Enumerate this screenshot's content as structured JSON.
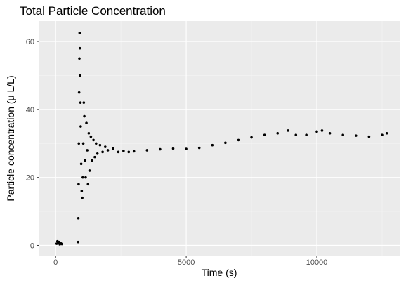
{
  "chart_data": {
    "type": "scatter",
    "title": "Total Particle Concentration",
    "xlabel": "Time (s)",
    "ylabel": "Particle concentration (μ L/L)",
    "xlim": [
      -650,
      13200
    ],
    "ylim": [
      -3,
      66
    ],
    "x_ticks": [
      0,
      5000,
      10000
    ],
    "x_tick_labels": [
      "0",
      "5000",
      "10000"
    ],
    "y_ticks": [
      0,
      20,
      40,
      60
    ],
    "y_tick_labels": [
      "0",
      "20",
      "40",
      "60"
    ],
    "grid": true,
    "legend": "none",
    "series": [
      {
        "color": "#000000",
        "x": [
          40,
          70,
          100,
          130,
          160,
          200,
          240,
          860,
          870,
          880,
          890,
          900,
          910,
          920,
          930,
          940,
          950,
          960,
          980,
          1000,
          1020,
          1040,
          1060,
          1080,
          1100,
          1120,
          1150,
          1180,
          1210,
          1240,
          1270,
          1300,
          1350,
          1400,
          1450,
          1500,
          1550,
          1600,
          1700,
          1800,
          1900,
          2000,
          2200,
          2400,
          2600,
          2800,
          3000,
          3500,
          4000,
          4500,
          5000,
          5500,
          6000,
          6500,
          7000,
          7500,
          8000,
          8500,
          8900,
          9200,
          9600,
          10000,
          10200,
          10500,
          11000,
          11500,
          12000,
          12500,
          12680
        ],
        "y": [
          0.5,
          1.2,
          0.8,
          1.0,
          0.3,
          0.6,
          0.4,
          1.0,
          8.0,
          18.0,
          30.0,
          45.0,
          55.0,
          62.5,
          58.0,
          50.0,
          42.0,
          35.0,
          24.0,
          16.0,
          14.0,
          20.0,
          30.0,
          42.0,
          38.0,
          25.0,
          20.0,
          36.0,
          28.0,
          18.0,
          33.0,
          22.0,
          32.0,
          25.0,
          31.0,
          26.0,
          30.0,
          27.0,
          29.5,
          27.5,
          29.0,
          28.0,
          28.5,
          27.5,
          27.8,
          27.5,
          27.7,
          28.0,
          28.3,
          28.5,
          28.4,
          28.7,
          29.5,
          30.2,
          31.0,
          31.8,
          32.5,
          33.0,
          33.8,
          32.5,
          32.5,
          33.5,
          33.8,
          33.0,
          32.5,
          32.3,
          32.0,
          32.5,
          33.0
        ]
      }
    ]
  }
}
